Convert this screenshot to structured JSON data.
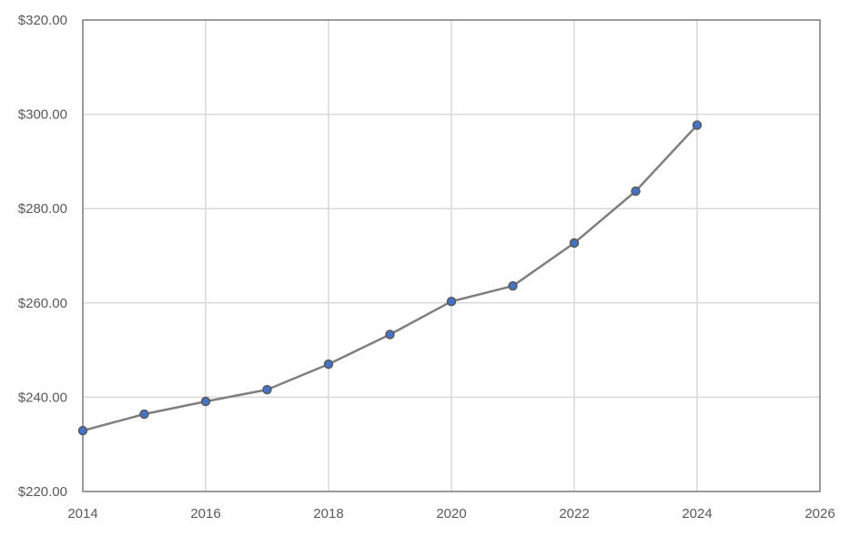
{
  "chart_data": {
    "type": "line",
    "title": "",
    "xlabel": "",
    "ylabel": "",
    "xlim": [
      2014,
      2026
    ],
    "ylim": [
      220,
      320
    ],
    "x_ticks": [
      2014,
      2016,
      2018,
      2020,
      2022,
      2024,
      2026
    ],
    "x_tick_labels": [
      "2014",
      "2016",
      "2018",
      "2020",
      "2022",
      "2024",
      "2026"
    ],
    "y_ticks": [
      220,
      240,
      260,
      280,
      300,
      320
    ],
    "y_tick_labels": [
      "$220.00",
      "$240.00",
      "$260.00",
      "$280.00",
      "$300.00",
      "$320.00"
    ],
    "grid": true,
    "legend": "none",
    "series": [
      {
        "x": [
          2014,
          2015,
          2016,
          2017,
          2018,
          2019,
          2020,
          2021,
          2022,
          2023,
          2024
        ],
        "values": [
          232.9,
          236.4,
          239.1,
          241.6,
          247.0,
          253.3,
          260.3,
          263.6,
          272.7,
          283.7,
          297.7
        ]
      }
    ],
    "colors": {
      "line": "#7f7f7f",
      "marker_fill": "#4472c4",
      "marker_stroke": "#5a5a5a"
    }
  }
}
